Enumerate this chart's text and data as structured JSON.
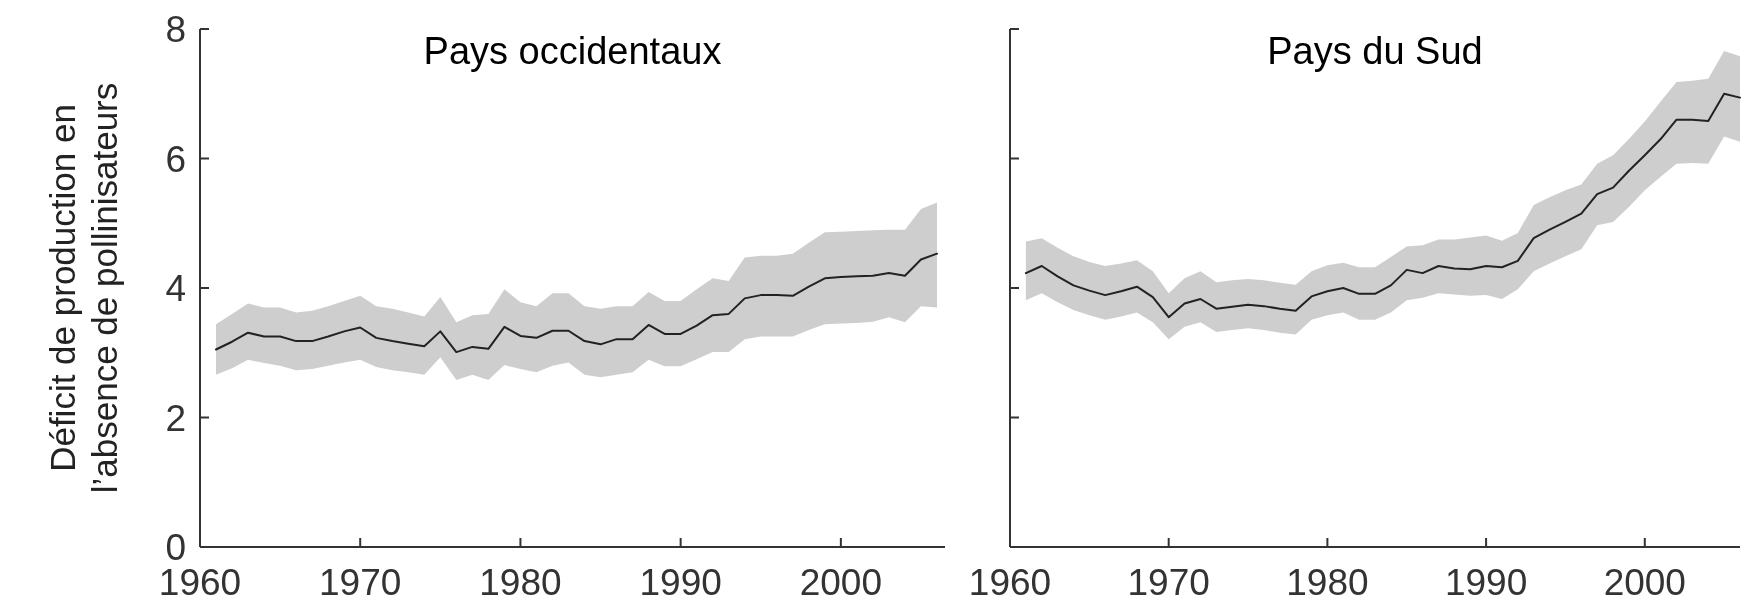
{
  "chart_data": [
    {
      "type": "line",
      "title": "Pays occidentaux",
      "ylabel": "Déficit de production en\nl’absence de pollinisateurs",
      "xlim": [
        1960,
        2006.5
      ],
      "ylim": [
        0,
        8
      ],
      "xticks": [
        1960,
        1970,
        1980,
        1990,
        2000
      ],
      "yticks": [
        0,
        2,
        4,
        6,
        8
      ],
      "grid": false,
      "x": [
        1961,
        1962,
        1963,
        1964,
        1965,
        1966,
        1967,
        1968,
        1969,
        1970,
        1971,
        1972,
        1973,
        1974,
        1975,
        1976,
        1977,
        1978,
        1979,
        1980,
        1981,
        1982,
        1983,
        1984,
        1985,
        1986,
        1987,
        1988,
        1989,
        1990,
        1991,
        1992,
        1993,
        1994,
        1995,
        1996,
        1997,
        1998,
        1999,
        2000,
        2001,
        2002,
        2003,
        2004,
        2005,
        2006
      ],
      "series": [
        {
          "color": "#222222",
          "values": [
            3.05,
            3.17,
            3.31,
            3.25,
            3.25,
            3.18,
            3.18,
            3.25,
            3.33,
            3.39,
            3.23,
            3.18,
            3.14,
            3.1,
            3.33,
            3.01,
            3.09,
            3.06,
            3.4,
            3.26,
            3.23,
            3.34,
            3.34,
            3.18,
            3.13,
            3.21,
            3.21,
            3.43,
            3.29,
            3.29,
            3.42,
            3.58,
            3.6,
            3.84,
            3.89,
            3.89,
            3.88,
            4.02,
            4.15,
            4.17,
            4.18,
            4.19,
            4.23,
            4.19,
            4.44,
            4.53
          ],
          "upper": [
            3.44,
            3.6,
            3.76,
            3.7,
            3.7,
            3.62,
            3.65,
            3.72,
            3.8,
            3.88,
            3.72,
            3.68,
            3.62,
            3.56,
            3.86,
            3.47,
            3.58,
            3.6,
            3.98,
            3.78,
            3.72,
            3.92,
            3.92,
            3.72,
            3.68,
            3.72,
            3.72,
            3.94,
            3.8,
            3.8,
            3.98,
            4.15,
            4.11,
            4.47,
            4.5,
            4.5,
            4.53,
            4.7,
            4.86,
            4.87,
            4.88,
            4.89,
            4.9,
            4.9,
            5.22,
            5.32
          ],
          "lower": [
            2.66,
            2.76,
            2.89,
            2.84,
            2.8,
            2.73,
            2.75,
            2.8,
            2.85,
            2.89,
            2.78,
            2.73,
            2.7,
            2.66,
            2.93,
            2.58,
            2.66,
            2.58,
            2.81,
            2.75,
            2.7,
            2.8,
            2.85,
            2.66,
            2.62,
            2.66,
            2.7,
            2.89,
            2.79,
            2.79,
            2.9,
            3.01,
            3.01,
            3.21,
            3.25,
            3.25,
            3.25,
            3.35,
            3.44,
            3.45,
            3.46,
            3.48,
            3.55,
            3.47,
            3.72,
            3.7
          ]
        }
      ]
    },
    {
      "type": "line",
      "title": "Pays du Sud",
      "xlim": [
        1960,
        2006
      ],
      "ylim": [
        0,
        8
      ],
      "xticks": [
        1960,
        1970,
        1980,
        1990,
        2000
      ],
      "yticks": [
        0,
        2,
        4,
        6,
        8
      ],
      "tick_labels": "x",
      "grid": false,
      "x": [
        1961,
        1962,
        1963,
        1964,
        1965,
        1966,
        1967,
        1968,
        1969,
        1970,
        1971,
        1972,
        1973,
        1974,
        1975,
        1976,
        1977,
        1978,
        1979,
        1980,
        1981,
        1982,
        1983,
        1984,
        1985,
        1986,
        1987,
        1988,
        1989,
        1990,
        1991,
        1992,
        1993,
        1994,
        1995,
        1996,
        1997,
        1998,
        1999,
        2000,
        2001,
        2002,
        2003,
        2004,
        2005,
        2006
      ],
      "series": [
        {
          "color": "#222222",
          "values": [
            4.23,
            4.34,
            4.18,
            4.04,
            3.96,
            3.89,
            3.95,
            4.02,
            3.86,
            3.55,
            3.76,
            3.83,
            3.68,
            3.71,
            3.74,
            3.72,
            3.68,
            3.65,
            3.87,
            3.95,
            4.0,
            3.91,
            3.91,
            4.04,
            4.28,
            4.23,
            4.34,
            4.3,
            4.29,
            4.34,
            4.32,
            4.42,
            4.77,
            4.9,
            5.02,
            5.15,
            5.45,
            5.55,
            5.81,
            6.05,
            6.3,
            6.6,
            6.6,
            6.58,
            7.0,
            6.94
          ],
          "upper": [
            4.72,
            4.77,
            4.62,
            4.49,
            4.4,
            4.34,
            4.38,
            4.43,
            4.26,
            3.92,
            4.15,
            4.26,
            4.09,
            4.12,
            4.14,
            4.12,
            4.08,
            4.05,
            4.26,
            4.35,
            4.39,
            4.32,
            4.32,
            4.48,
            4.64,
            4.66,
            4.75,
            4.75,
            4.78,
            4.81,
            4.73,
            4.85,
            5.28,
            5.4,
            5.51,
            5.6,
            5.92,
            6.05,
            6.3,
            6.57,
            6.88,
            7.18,
            7.2,
            7.23,
            7.66,
            7.58
          ],
          "lower": [
            3.81,
            3.92,
            3.78,
            3.66,
            3.58,
            3.51,
            3.56,
            3.62,
            3.47,
            3.21,
            3.4,
            3.47,
            3.32,
            3.35,
            3.38,
            3.35,
            3.31,
            3.28,
            3.51,
            3.58,
            3.62,
            3.51,
            3.51,
            3.62,
            3.81,
            3.85,
            3.92,
            3.9,
            3.88,
            3.89,
            3.83,
            3.98,
            4.26,
            4.38,
            4.49,
            4.6,
            4.97,
            5.02,
            5.25,
            5.51,
            5.72,
            5.92,
            5.93,
            5.92,
            6.34,
            6.26
          ]
        }
      ]
    }
  ]
}
